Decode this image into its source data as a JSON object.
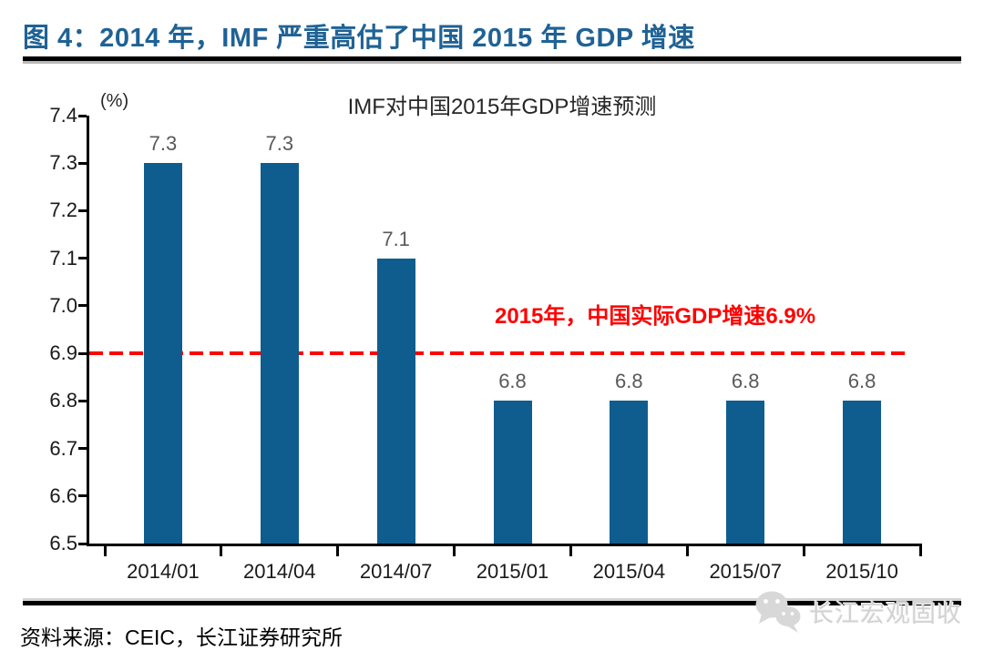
{
  "page": {
    "figure_title": "图 4：2014 年，IMF 严重高估了中国 2015 年 GDP 增速",
    "source_note": "资料来源：CEIC，长江证券研究所",
    "watermark_label": "长江宏观固收"
  },
  "chart_data": {
    "type": "bar",
    "title": "IMF对中国2015年GDP增速预测",
    "unit_label": "(%)",
    "categories": [
      "2014/01",
      "2014/04",
      "2014/07",
      "2015/01",
      "2015/04",
      "2015/07",
      "2015/10"
    ],
    "values": [
      7.3,
      7.3,
      7.1,
      6.8,
      6.8,
      6.8,
      6.8
    ],
    "bar_labels": [
      "7.3",
      "7.3",
      "7.1",
      "6.8",
      "6.8",
      "6.8",
      "6.8"
    ],
    "ylim": [
      6.5,
      7.4
    ],
    "ytick_step": 0.1,
    "ytick_labels": [
      "7.4",
      "7.3",
      "7.2",
      "7.1",
      "7.0",
      "6.9",
      "6.8",
      "6.7",
      "6.6",
      "6.5"
    ],
    "grid": false,
    "legend_position": "none",
    "bar_color": "#0F5D8E",
    "reference_line": {
      "value": 6.9,
      "label": "2015年，中国实际GDP增速6.9%",
      "color": "#FE0000",
      "style": "dashed"
    }
  },
  "colors": {
    "title_blue": "#1F6295",
    "bar_blue": "#0F5D8E",
    "reference_red": "#FE0000",
    "axis_black": "#000000",
    "bar_label_gray": "#595959",
    "watermark_gray": "#D2D2D2"
  }
}
